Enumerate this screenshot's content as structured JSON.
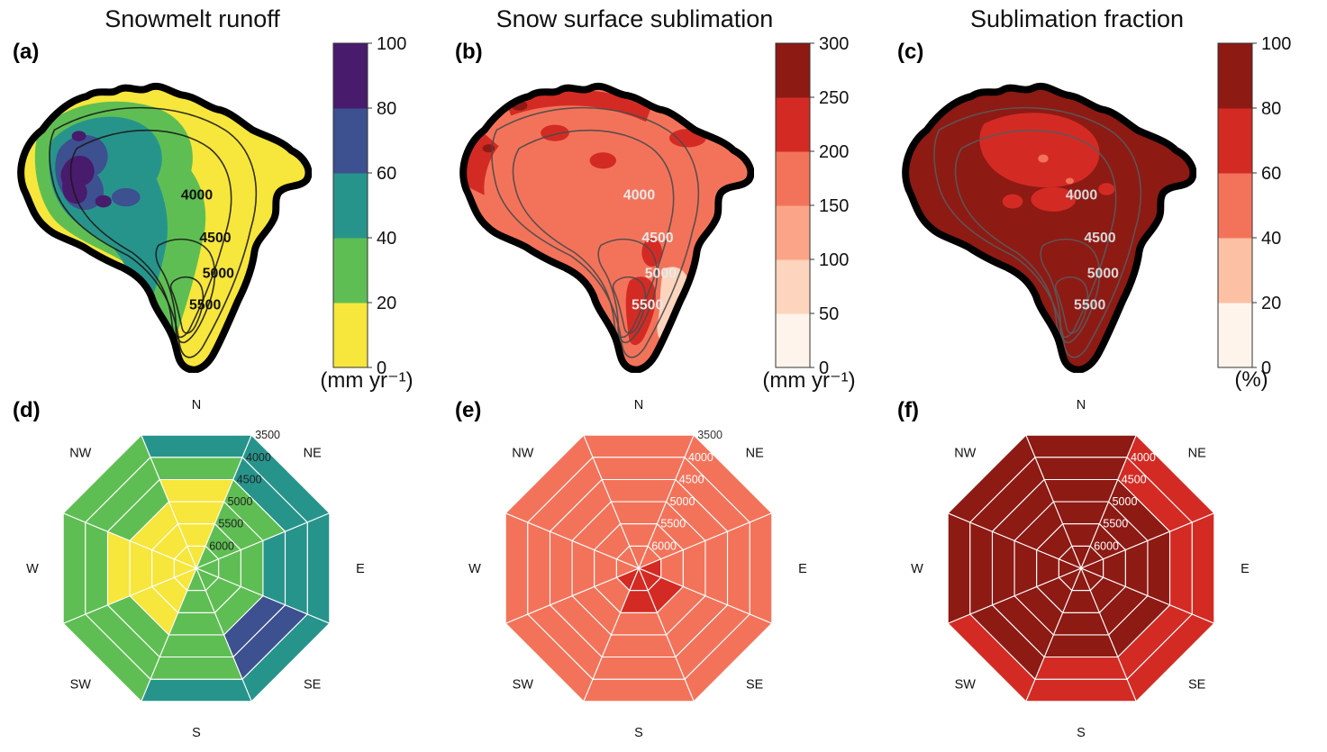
{
  "figure": {
    "background_color": "#ffffff",
    "description": "Six-panel figure: three elevation maps with discrete colorbars (top row) and three octagonal direction-by-elevation radar charts (bottom row)"
  },
  "chart_data": [
    {
      "id": "a",
      "panel_letter": "(a)",
      "type": "heatmap",
      "title": "Snowmelt runoff",
      "unit": "(mm yr⁻¹)",
      "colorbar": {
        "orientation": "vertical",
        "tick_labels": [
          "0",
          "20",
          "40",
          "60",
          "80",
          "100"
        ],
        "bin_colors_bottom_to_top": [
          "#f7e63b",
          "#5fbe53",
          "#27948c",
          "#3d5090",
          "#481b6d"
        ]
      },
      "contour_labels": [
        "4000",
        "4500",
        "5000",
        "5500"
      ],
      "contour_line_color": "#1a1a1a",
      "contour_label_color": "#111111",
      "border_color": "#000000",
      "map_palette": {
        "base": "#f7e63b",
        "level1": "#5fbe53",
        "level2": "#27948c",
        "level3": "#3d5090",
        "level4": "#481b6d"
      }
    },
    {
      "id": "b",
      "panel_letter": "(b)",
      "type": "heatmap",
      "title": "Snow surface sublimation",
      "unit": "(mm yr⁻¹)",
      "colorbar": {
        "orientation": "vertical",
        "tick_labels": [
          "0",
          "50",
          "100",
          "150",
          "200",
          "250",
          "300"
        ],
        "bin_colors_bottom_to_top": [
          "#fff4ec",
          "#fdd4bd",
          "#fca488",
          "#f3735a",
          "#d32b24",
          "#8e1a14"
        ]
      },
      "contour_labels": [
        "4000",
        "4500",
        "5000",
        "5500"
      ],
      "contour_line_color": "#4a4a4a",
      "contour_label_color": "#e8e8e8",
      "border_color": "#000000",
      "map_palette": {
        "base": "#f3735a",
        "patch_high": "#d32b24",
        "patch_low": "#fdd4bd",
        "patch_top": "#8e1a14"
      }
    },
    {
      "id": "c",
      "panel_letter": "(c)",
      "type": "heatmap",
      "title": "Sublimation fraction",
      "unit": "(%)",
      "colorbar": {
        "orientation": "vertical",
        "tick_labels": [
          "0",
          "20",
          "40",
          "60",
          "80",
          "100"
        ],
        "bin_colors_bottom_to_top": [
          "#fff4ec",
          "#fcc0a5",
          "#f3735a",
          "#d32b24",
          "#8e1a14"
        ]
      },
      "contour_labels": [
        "4000",
        "4500",
        "5000",
        "5500"
      ],
      "contour_line_color": "#5a5a5a",
      "contour_label_color": "#d8d8d8",
      "border_color": "#000000",
      "map_palette": {
        "base": "#8e1a14",
        "patch_high": "#d32b24",
        "patch_low": "#f3735a"
      }
    },
    {
      "id": "d",
      "panel_letter": "(d)",
      "type": "radar_octagon",
      "directions": [
        "N",
        "NE",
        "E",
        "SE",
        "S",
        "SW",
        "W",
        "NW"
      ],
      "ring_labels_outer_to_inner": [
        "3500",
        "4000",
        "4500",
        "5000",
        "5500",
        "6000"
      ],
      "ring_label_color_outer": "#222222",
      "ring_label_color_inner": "#222222",
      "grid_color": "#ffffff",
      "bin_colors": [
        "#f7e63b",
        "#5fbe53",
        "#27948c",
        "#3d5090",
        "#481b6d"
      ],
      "bin_value_ranges_mm_yr": [
        "0-20",
        "20-40",
        "40-60",
        "60-80",
        "80-100"
      ],
      "cells_bin_outer_to_inner": {
        "N": [
          2,
          1,
          0,
          0,
          0,
          0
        ],
        "NE": [
          2,
          2,
          1,
          1,
          1,
          1
        ],
        "E": [
          2,
          2,
          2,
          1,
          1,
          1
        ],
        "SE": [
          2,
          3,
          3,
          1,
          1,
          1
        ],
        "S": [
          2,
          1,
          1,
          1,
          1,
          1
        ],
        "SW": [
          1,
          1,
          1,
          0,
          0,
          0
        ],
        "W": [
          1,
          1,
          0,
          0,
          0,
          0
        ],
        "NW": [
          1,
          1,
          1,
          0,
          0,
          0
        ]
      }
    },
    {
      "id": "e",
      "panel_letter": "(e)",
      "type": "radar_octagon",
      "directions": [
        "N",
        "NE",
        "E",
        "SE",
        "S",
        "SW",
        "W",
        "NW"
      ],
      "ring_labels_outer_to_inner": [
        "3500",
        "4000",
        "4500",
        "5000",
        "5500",
        "6000"
      ],
      "ring_label_color_outer": "#333333",
      "ring_label_color_inner": "#ffffff",
      "grid_color": "#ffffff",
      "bin_colors": [
        "#fff4ec",
        "#fdd4bd",
        "#fca488",
        "#f3735a",
        "#d32b24",
        "#8e1a14"
      ],
      "bin_value_ranges_mm_yr": [
        "0-50",
        "50-100",
        "100-150",
        "150-200",
        "200-250",
        "250-300"
      ],
      "cells_bin_outer_to_inner": {
        "N": [
          3,
          3,
          3,
          3,
          3,
          3
        ],
        "NE": [
          3,
          3,
          3,
          3,
          3,
          3
        ],
        "E": [
          3,
          3,
          3,
          3,
          3,
          4
        ],
        "SE": [
          3,
          3,
          3,
          3,
          4,
          4
        ],
        "S": [
          3,
          3,
          3,
          3,
          4,
          4
        ],
        "SW": [
          3,
          3,
          3,
          3,
          3,
          4
        ],
        "W": [
          3,
          3,
          3,
          3,
          3,
          3
        ],
        "NW": [
          3,
          3,
          3,
          3,
          3,
          3
        ]
      }
    },
    {
      "id": "f",
      "panel_letter": "(f)",
      "type": "radar_octagon",
      "directions": [
        "N",
        "NE",
        "E",
        "SE",
        "S",
        "SW",
        "W",
        "NW"
      ],
      "ring_labels_outer_to_inner": [
        "3500",
        "4000",
        "4500",
        "5000",
        "5500",
        "6000"
      ],
      "ring_label_color_outer": "#ffffff",
      "ring_label_color_inner": "#ffffff",
      "grid_color": "#ffffff",
      "bin_colors": [
        "#fff4ec",
        "#fcc0a5",
        "#f3735a",
        "#d32b24",
        "#8e1a14"
      ],
      "bin_value_ranges_pct": [
        "0-20",
        "20-40",
        "40-60",
        "60-80",
        "80-100"
      ],
      "cells_bin_outer_to_inner": {
        "N": [
          4,
          4,
          4,
          4,
          4,
          4
        ],
        "NE": [
          3,
          3,
          4,
          4,
          4,
          4
        ],
        "E": [
          3,
          3,
          4,
          4,
          4,
          4
        ],
        "SE": [
          3,
          3,
          4,
          4,
          4,
          4
        ],
        "S": [
          3,
          3,
          4,
          4,
          4,
          4
        ],
        "SW": [
          3,
          4,
          4,
          4,
          4,
          4
        ],
        "W": [
          4,
          4,
          4,
          4,
          4,
          4
        ],
        "NW": [
          4,
          4,
          4,
          4,
          4,
          4
        ]
      }
    }
  ]
}
